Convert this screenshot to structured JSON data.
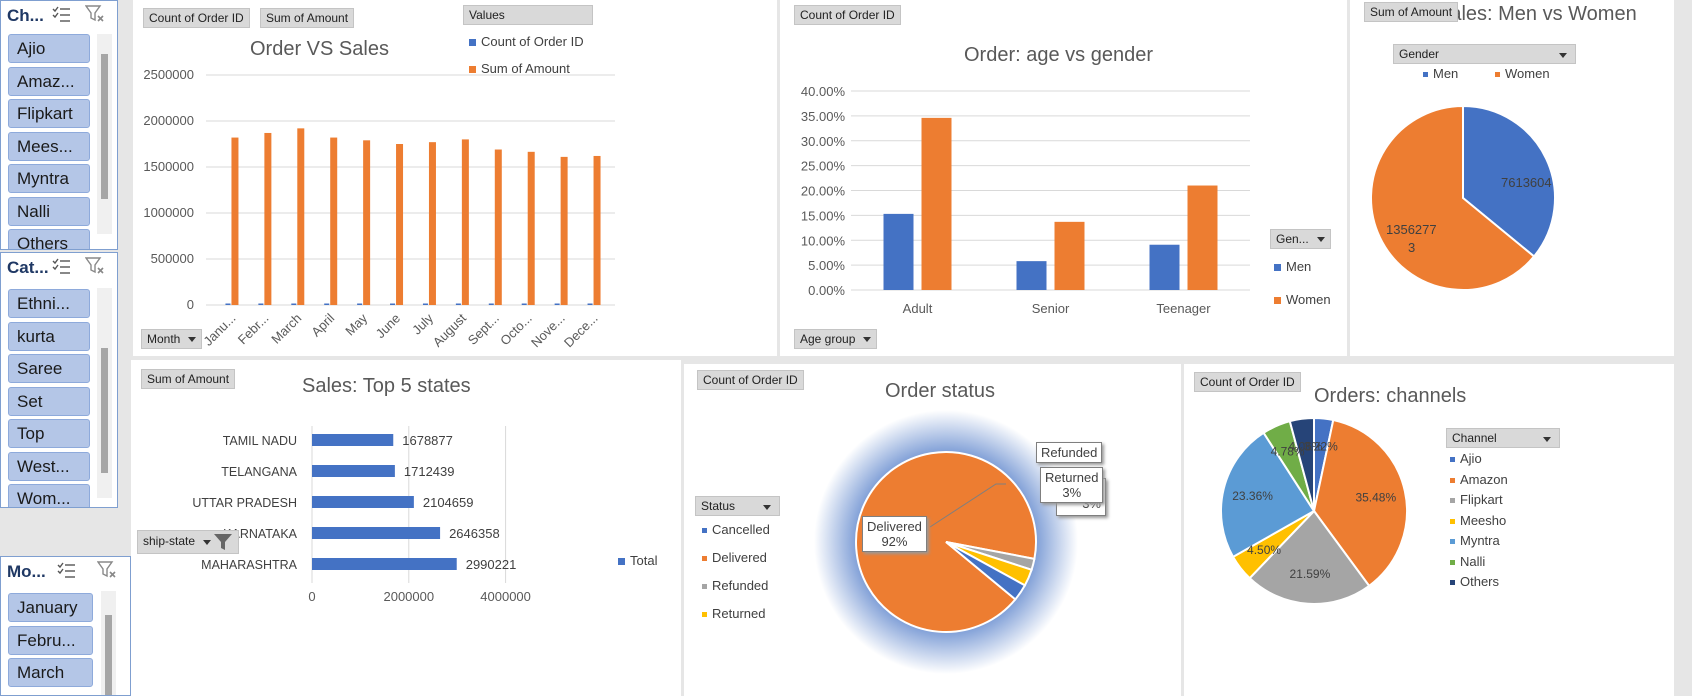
{
  "slicers": [
    {
      "title": "Ch...",
      "items": [
        "Ajio",
        "Amaz...",
        "Flipkart",
        "Mees...",
        "Myntra",
        "Nalli",
        "Others"
      ]
    },
    {
      "title": "Cat...",
      "items": [
        "Ethni...",
        "kurta",
        "Saree",
        "Set",
        "Top",
        "West...",
        "Wom..."
      ]
    },
    {
      "title": "Mo...",
      "items": [
        "January",
        "Febru...",
        "March"
      ]
    }
  ],
  "chart1": {
    "btn_count": "Count of Order ID",
    "btn_sum": "Sum of Amount",
    "btn_values": "Values",
    "btn_month": "Month",
    "title": "Order VS Sales",
    "legend": [
      "Count of Order ID",
      "Sum of Amount"
    ],
    "y_ticks": [
      "2500000",
      "2000000",
      "1500000",
      "1000000",
      "500000",
      "0"
    ],
    "x_labels": [
      "Janu...",
      "Febr...",
      "March",
      "April",
      "May",
      "June",
      "July",
      "August",
      "Sept...",
      "Octo...",
      "Nove...",
      "Dece..."
    ]
  },
  "chart2": {
    "btn_count": "Count of Order ID",
    "title": "Order: age vs gender",
    "y_ticks": [
      "40.00%",
      "35.00%",
      "30.00%",
      "25.00%",
      "20.00%",
      "15.00%",
      "10.00%",
      "5.00%",
      "0.00%"
    ],
    "btn_gender": "Gen...",
    "legend": [
      "Men",
      "Women"
    ],
    "btn_age": "Age group"
  },
  "chart3": {
    "btn_sum": "Sum of Amount",
    "title": "Sales: Men vs Women",
    "btn_gender": "Gender",
    "legend": [
      "Men",
      "Women"
    ],
    "label_men": "7613604",
    "label_women_1": "1356277",
    "label_women_2": "3"
  },
  "chart4": {
    "btn_sum": "Sum of Amount",
    "title": "Sales: Top 5 states",
    "legend": "Total",
    "btn_state": "ship-state",
    "x_ticks": [
      "0",
      "2000000",
      "4000000"
    ]
  },
  "chart5": {
    "btn_count": "Count of Order ID",
    "title": "Order status",
    "btn_status": "Status",
    "legend": [
      "Cancelled",
      "Delivered",
      "Refunded",
      "Returned"
    ],
    "label_delivered": "Delivered",
    "label_delivered_pct": "92%",
    "label_refunded": "Refunded",
    "label_returned": "Returned",
    "label_returned_pct": "3%",
    "label_hidden_d": "d",
    "label_hidden_pct": "3%"
  },
  "chart6": {
    "btn_count": "Count of Order ID",
    "title": "Orders: channels",
    "btn_channel": "Channel",
    "legend": [
      "Ajio",
      "Amazon",
      "Flipkart",
      "Meesho",
      "Myntra",
      "Nalli",
      "Others"
    ],
    "labels": [
      "3.22%",
      "35.48%",
      "21.59%",
      "4.50%",
      "23.36%",
      "4.78%",
      "4.06%"
    ]
  },
  "colors": {
    "blue": "#4472c4",
    "orange": "#ed7d31",
    "gray": "#a5a5a5",
    "yellow": "#ffc000",
    "lightblue": "#5b9bd5",
    "green": "#70ad47",
    "navy": "#264478"
  },
  "chart_data": [
    {
      "type": "bar",
      "title": "Order VS Sales",
      "categories": [
        "Janu...",
        "Febr...",
        "March",
        "April",
        "May",
        "June",
        "July",
        "August",
        "Sept...",
        "Octo...",
        "Nove...",
        "Dece..."
      ],
      "series": [
        {
          "name": "Count of Order ID",
          "values": [
            2800,
            2900,
            3000,
            2800,
            2750,
            2700,
            2750,
            2800,
            2600,
            2550,
            2500,
            2500
          ]
        },
        {
          "name": "Sum of Amount",
          "values": [
            1820000,
            1870000,
            1920000,
            1820000,
            1790000,
            1750000,
            1770000,
            1800000,
            1690000,
            1665000,
            1610000,
            1620000
          ]
        }
      ],
      "ylim": [
        0,
        2500000
      ]
    },
    {
      "type": "bar",
      "title": "Order: age vs gender",
      "categories": [
        "Adult",
        "Senior",
        "Teenager"
      ],
      "series": [
        {
          "name": "Men",
          "values": [
            0.153,
            0.058,
            0.091
          ]
        },
        {
          "name": "Women",
          "values": [
            0.346,
            0.137,
            0.21
          ]
        }
      ],
      "ylim": [
        0,
        0.4
      ]
    },
    {
      "type": "pie",
      "title": "Sales: Men vs Women",
      "categories": [
        "Men",
        "Women"
      ],
      "values": [
        7613604,
        13562773
      ]
    },
    {
      "type": "bar",
      "title": "Sales: Top 5 states",
      "categories": [
        "TAMIL NADU",
        "TELANGANA",
        "UTTAR PRADESH",
        "KARNATAKA",
        "MAHARASHTRA"
      ],
      "values": [
        1678877,
        1712439,
        2104659,
        2646358,
        2990221
      ],
      "series": [
        {
          "name": "Total",
          "values": [
            1678877,
            1712439,
            2104659,
            2646358,
            2990221
          ]
        }
      ],
      "xlim": [
        0,
        5000000
      ]
    },
    {
      "type": "pie",
      "title": "Order status",
      "categories": [
        "Cancelled",
        "Delivered",
        "Refunded",
        "Returned"
      ],
      "values": [
        0.03,
        0.92,
        0.02,
        0.03
      ]
    },
    {
      "type": "pie",
      "title": "Orders: channels",
      "categories": [
        "Ajio",
        "Amazon",
        "Flipkart",
        "Meesho",
        "Myntra",
        "Nalli",
        "Others"
      ],
      "values": [
        3.22,
        35.48,
        21.59,
        4.5,
        23.36,
        4.78,
        4.06
      ]
    }
  ]
}
